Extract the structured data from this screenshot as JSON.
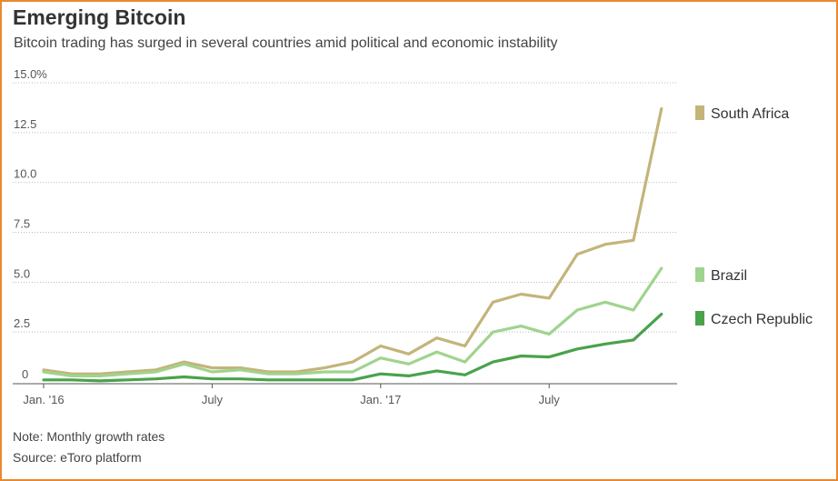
{
  "title": "Emerging Bitcoin",
  "subtitle": "Bitcoin trading has surged in several countries amid political and economic instability",
  "note": "Note: Monthly growth rates",
  "source": "Source: eToro platform",
  "colors": {
    "border": "#e8892f",
    "south_africa": "#c4b47a",
    "brazil": "#9fd48e",
    "czech_republic": "#4aa24a"
  },
  "chart_data": {
    "type": "line",
    "x": [
      "2016-01",
      "2016-02",
      "2016-03",
      "2016-04",
      "2016-05",
      "2016-06",
      "2016-07",
      "2016-08",
      "2016-09",
      "2016-10",
      "2016-11",
      "2016-12",
      "2017-01",
      "2017-02",
      "2017-03",
      "2017-04",
      "2017-05",
      "2017-06",
      "2017-07",
      "2017-08",
      "2017-09",
      "2017-10",
      "2017-11",
      "2017-12"
    ],
    "x_tick_labels": [
      {
        "x": "2016-01",
        "label": "Jan. '16"
      },
      {
        "x": "2016-07",
        "label": "July"
      },
      {
        "x": "2017-01",
        "label": "Jan. '17"
      },
      {
        "x": "2017-07",
        "label": "July"
      }
    ],
    "ylim": [
      0,
      15
    ],
    "y_ticks": [
      0,
      2.5,
      5.0,
      7.5,
      10.0,
      12.5,
      15.0
    ],
    "y_tick_labels": [
      "0",
      "2.5",
      "5.0",
      "7.5",
      "10.0",
      "12.5",
      "15.0%"
    ],
    "grid": true,
    "legend": "right",
    "series": [
      {
        "name": "South Africa",
        "color": "#c4b47a",
        "values": [
          0.6,
          0.4,
          0.4,
          0.5,
          0.6,
          1.0,
          0.7,
          0.7,
          0.5,
          0.5,
          0.7,
          1.0,
          1.8,
          1.4,
          2.2,
          1.8,
          4.0,
          4.4,
          4.2,
          6.4,
          6.9,
          7.1,
          13.7,
          null
        ]
      },
      {
        "name": "Brazil",
        "color": "#9fd48e",
        "values": [
          0.5,
          0.3,
          0.3,
          0.4,
          0.5,
          0.9,
          0.5,
          0.6,
          0.4,
          0.4,
          0.5,
          0.5,
          1.2,
          0.9,
          1.5,
          1.0,
          2.5,
          2.8,
          2.4,
          3.6,
          4.0,
          3.6,
          5.7,
          null
        ]
      },
      {
        "name": "Czech Republic",
        "color": "#4aa24a",
        "values": [
          0.1,
          0.1,
          0.05,
          0.1,
          0.15,
          0.25,
          0.15,
          0.15,
          0.1,
          0.1,
          0.1,
          0.1,
          0.4,
          0.3,
          0.55,
          0.35,
          1.0,
          1.3,
          1.25,
          1.65,
          1.9,
          2.1,
          3.4,
          null
        ]
      }
    ]
  }
}
